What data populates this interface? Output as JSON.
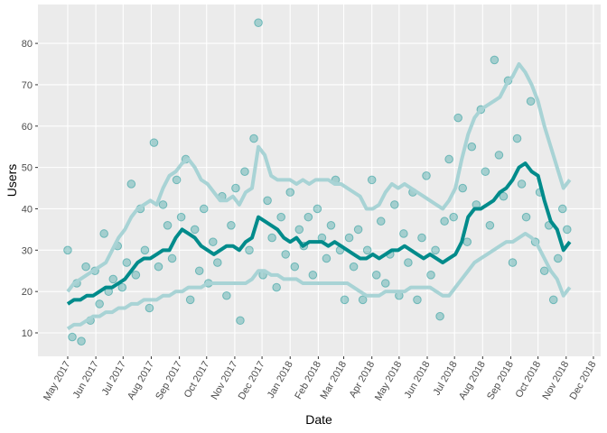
{
  "chart_data": {
    "type": "scatter",
    "x_label": "Date",
    "y_label": "Users",
    "xlim": [
      -32.8,
      587
    ],
    "ylim": [
      4.33,
      89.4
    ],
    "xticks": [
      {
        "value": 0,
        "label": "May 2017"
      },
      {
        "value": 31,
        "label": "Jun 2017"
      },
      {
        "value": 61,
        "label": "Jul 2017"
      },
      {
        "value": 92,
        "label": "Aug 2017"
      },
      {
        "value": 123,
        "label": "Sep 2017"
      },
      {
        "value": 153,
        "label": "Oct 2017"
      },
      {
        "value": 184,
        "label": "Nov 2017"
      },
      {
        "value": 214,
        "label": "Dec 2017"
      },
      {
        "value": 245,
        "label": "Jan 2018"
      },
      {
        "value": 276,
        "label": "Feb 2018"
      },
      {
        "value": 304,
        "label": "Mar 2018"
      },
      {
        "value": 335,
        "label": "Apr 2018"
      },
      {
        "value": 365,
        "label": "May 2018"
      },
      {
        "value": 396,
        "label": "Jun 2018"
      },
      {
        "value": 426,
        "label": "Jul 2018"
      },
      {
        "value": 457,
        "label": "Aug 2018"
      },
      {
        "value": 488,
        "label": "Sep 2018"
      },
      {
        "value": 518,
        "label": "Oct 2018"
      },
      {
        "value": 549,
        "label": "Nov 2018"
      },
      {
        "value": 579,
        "label": "Dec 2018"
      }
    ],
    "yticks": [
      10,
      20,
      30,
      40,
      50,
      60,
      70,
      80
    ],
    "grid": true,
    "x": [
      0,
      7,
      14,
      21,
      28,
      35,
      42,
      49,
      56,
      63,
      70,
      77,
      84,
      91,
      98,
      105,
      112,
      119,
      126,
      133,
      140,
      147,
      154,
      161,
      168,
      175,
      182,
      189,
      196,
      203,
      210,
      217,
      224,
      231,
      238,
      245,
      252,
      259,
      266,
      273,
      280,
      287,
      294,
      301,
      308,
      315,
      322,
      329,
      336,
      343,
      350,
      357,
      364,
      371,
      378,
      385,
      392,
      399,
      406,
      413,
      420,
      427,
      434,
      441,
      448,
      455,
      462,
      469,
      476,
      483,
      490,
      497,
      504,
      511,
      518,
      525,
      532,
      539,
      546,
      553
    ],
    "series": [
      {
        "style": "points",
        "color": "#008b8b",
        "x": [
          0,
          5,
          10,
          15,
          20,
          25,
          30,
          35,
          40,
          45,
          50,
          55,
          60,
          65,
          70,
          75,
          80,
          85,
          90,
          95,
          100,
          105,
          110,
          115,
          120,
          125,
          130,
          135,
          140,
          145,
          150,
          155,
          160,
          165,
          170,
          175,
          180,
          185,
          190,
          195,
          200,
          205,
          210,
          215,
          220,
          225,
          230,
          235,
          240,
          245,
          250,
          255,
          260,
          265,
          270,
          275,
          280,
          285,
          290,
          295,
          300,
          305,
          310,
          315,
          320,
          325,
          330,
          335,
          340,
          345,
          350,
          355,
          360,
          365,
          370,
          375,
          380,
          385,
          390,
          395,
          400,
          405,
          410,
          415,
          420,
          425,
          430,
          435,
          440,
          445,
          450,
          455,
          460,
          465,
          470,
          475,
          480,
          485,
          490,
          495,
          500,
          505,
          510,
          515,
          520,
          525,
          530,
          535,
          540,
          545,
          550
        ],
        "values": [
          30,
          9,
          22,
          8,
          26,
          13,
          25,
          17,
          34,
          20,
          23,
          31,
          21,
          27,
          46,
          24,
          40,
          30,
          16,
          56,
          26,
          41,
          36,
          28,
          47,
          38,
          52,
          18,
          35,
          25,
          40,
          22,
          32,
          27,
          43,
          19,
          36,
          45,
          13,
          49,
          30,
          57,
          85,
          24,
          42,
          33,
          21,
          38,
          29,
          44,
          26,
          35,
          31,
          38,
          24,
          40,
          33,
          28,
          36,
          47,
          30,
          18,
          33,
          26,
          35,
          18,
          30,
          47,
          24,
          37,
          22,
          29,
          41,
          19,
          34,
          27,
          44,
          18,
          33,
          48,
          24,
          30,
          14,
          37,
          52,
          38,
          62,
          45,
          32,
          55,
          41,
          64,
          49,
          36,
          76,
          53,
          43,
          71,
          27,
          57,
          46,
          38,
          66,
          32,
          44,
          25,
          36,
          18,
          28,
          40,
          35
        ]
      },
      {
        "style": "line",
        "color": "#a8d3d5",
        "values": [
          20,
          22,
          23,
          24,
          25,
          26,
          27,
          30,
          33,
          35,
          38,
          40,
          41,
          42,
          41,
          45,
          48,
          49,
          51,
          52,
          50,
          47,
          46,
          44,
          42,
          42,
          43,
          41,
          44,
          45,
          55,
          53,
          48,
          47,
          47,
          47,
          46,
          47,
          46,
          47,
          47,
          47,
          46,
          46,
          45,
          44,
          43,
          40,
          40,
          41,
          44,
          46,
          45,
          46,
          45,
          44,
          43,
          42,
          41,
          40,
          42,
          45,
          52,
          58,
          62,
          64,
          65,
          66,
          67,
          70,
          72,
          75,
          73,
          70,
          66,
          60,
          55,
          50,
          45,
          47
        ]
      },
      {
        "style": "line",
        "color": "#a8d3d5",
        "values": [
          11,
          12,
          12,
          13,
          14,
          14,
          15,
          15,
          16,
          16,
          17,
          17,
          18,
          18,
          18,
          19,
          19,
          20,
          20,
          21,
          21,
          21,
          22,
          22,
          22,
          22,
          22,
          22,
          22,
          23,
          25,
          25,
          24,
          24,
          23,
          23,
          23,
          22,
          22,
          22,
          22,
          22,
          22,
          22,
          22,
          21,
          20,
          19,
          19,
          19,
          20,
          20,
          20,
          20,
          21,
          21,
          21,
          21,
          20,
          19,
          19,
          21,
          23,
          25,
          27,
          28,
          29,
          30,
          31,
          32,
          32,
          33,
          34,
          33,
          31,
          28,
          25,
          23,
          19,
          21
        ]
      },
      {
        "style": "line",
        "color": "#008b8b",
        "values": [
          17,
          18,
          18,
          19,
          19,
          20,
          21,
          21,
          22,
          23,
          25,
          27,
          28,
          28,
          29,
          30,
          30,
          33,
          35,
          34,
          33,
          31,
          30,
          29,
          30,
          31,
          31,
          30,
          32,
          33,
          38,
          37,
          36,
          35,
          33,
          32,
          33,
          31,
          32,
          32,
          32,
          31,
          32,
          31,
          30,
          29,
          28,
          28,
          29,
          28,
          29,
          30,
          30,
          31,
          30,
          29,
          28,
          29,
          28,
          27,
          28,
          29,
          32,
          38,
          40,
          40,
          41,
          42,
          44,
          45,
          47,
          50,
          51,
          49,
          48,
          42,
          37,
          35,
          30,
          32
        ]
      }
    ]
  }
}
